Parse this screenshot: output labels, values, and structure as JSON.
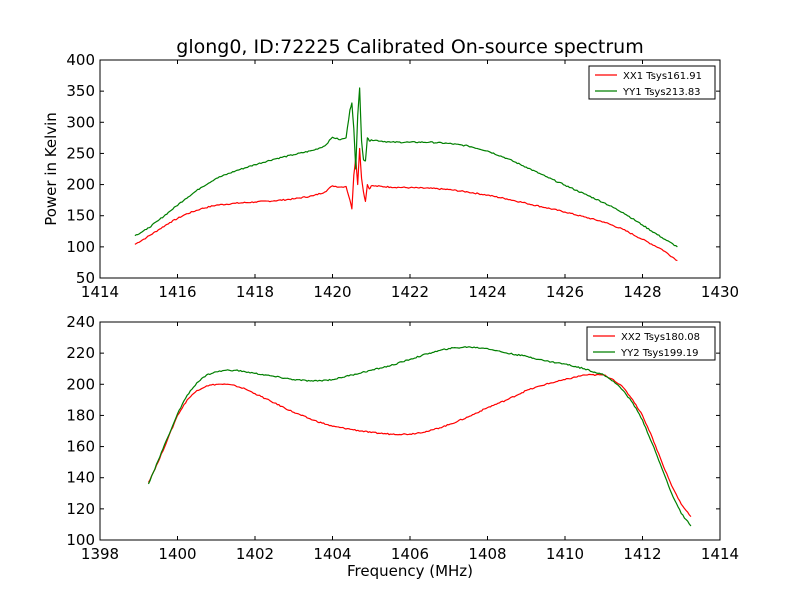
{
  "title": "glong0, ID:72225 Calibrated On-source spectrum",
  "colors": {
    "red": "#ff0000",
    "green": "#007f00"
  },
  "chart_data": [
    {
      "type": "line",
      "ylabel": "Power in Kelvin",
      "xlabel": "",
      "xlim": [
        1414,
        1430
      ],
      "ylim": [
        50,
        400
      ],
      "xticks": [
        1414,
        1416,
        1418,
        1420,
        1422,
        1424,
        1426,
        1428,
        1430
      ],
      "yticks": [
        50,
        100,
        150,
        200,
        250,
        300,
        350,
        400
      ],
      "legend_position": "top-right",
      "series": [
        {
          "name": "XX1 Tsys161.91",
          "color": "#ff0000",
          "points": [
            [
              1414.9,
              104
            ],
            [
              1415.2,
              115
            ],
            [
              1415.5,
              127
            ],
            [
              1415.8,
              139
            ],
            [
              1416.2,
              152
            ],
            [
              1416.6,
              161
            ],
            [
              1417.0,
              167
            ],
            [
              1417.5,
              170
            ],
            [
              1418.0,
              172
            ],
            [
              1418.5,
              174
            ],
            [
              1419.0,
              177
            ],
            [
              1419.5,
              182
            ],
            [
              1419.8,
              188
            ],
            [
              1420.0,
              198
            ],
            [
              1420.2,
              196
            ],
            [
              1420.35,
              197
            ],
            [
              1420.45,
              175
            ],
            [
              1420.5,
              161
            ],
            [
              1420.55,
              215
            ],
            [
              1420.6,
              243
            ],
            [
              1420.65,
              200
            ],
            [
              1420.7,
              258
            ],
            [
              1420.75,
              210
            ],
            [
              1420.8,
              188
            ],
            [
              1420.85,
              173
            ],
            [
              1420.9,
              200
            ],
            [
              1420.95,
              193
            ],
            [
              1421.0,
              198
            ],
            [
              1421.5,
              196
            ],
            [
              1422.0,
              195
            ],
            [
              1422.5,
              194
            ],
            [
              1423.0,
              192
            ],
            [
              1423.5,
              188
            ],
            [
              1424.0,
              183
            ],
            [
              1424.5,
              177
            ],
            [
              1425.0,
              170
            ],
            [
              1425.5,
              163
            ],
            [
              1426.0,
              156
            ],
            [
              1426.5,
              148
            ],
            [
              1427.0,
              140
            ],
            [
              1427.5,
              128
            ],
            [
              1428.0,
              112
            ],
            [
              1428.5,
              96
            ],
            [
              1428.9,
              78
            ]
          ]
        },
        {
          "name": "YY1 Tsys213.83",
          "color": "#007f00",
          "points": [
            [
              1414.9,
              118
            ],
            [
              1415.2,
              128
            ],
            [
              1415.5,
              142
            ],
            [
              1415.8,
              157
            ],
            [
              1416.2,
              177
            ],
            [
              1416.6,
              195
            ],
            [
              1417.0,
              210
            ],
            [
              1417.5,
              222
            ],
            [
              1418.0,
              232
            ],
            [
              1418.5,
              241
            ],
            [
              1419.0,
              248
            ],
            [
              1419.5,
              255
            ],
            [
              1419.8,
              262
            ],
            [
              1420.0,
              276
            ],
            [
              1420.2,
              272
            ],
            [
              1420.35,
              275
            ],
            [
              1420.45,
              320
            ],
            [
              1420.5,
              331
            ],
            [
              1420.55,
              290
            ],
            [
              1420.6,
              225
            ],
            [
              1420.65,
              310
            ],
            [
              1420.7,
              355
            ],
            [
              1420.75,
              270
            ],
            [
              1420.8,
              240
            ],
            [
              1420.85,
              238
            ],
            [
              1420.9,
              275
            ],
            [
              1420.95,
              270
            ],
            [
              1421.0,
              272
            ],
            [
              1421.5,
              268
            ],
            [
              1422.0,
              268
            ],
            [
              1422.5,
              268
            ],
            [
              1423.0,
              266
            ],
            [
              1423.5,
              262
            ],
            [
              1424.0,
              254
            ],
            [
              1424.5,
              242
            ],
            [
              1425.0,
              228
            ],
            [
              1425.5,
              213
            ],
            [
              1426.0,
              199
            ],
            [
              1426.5,
              185
            ],
            [
              1427.0,
              171
            ],
            [
              1427.5,
              155
            ],
            [
              1428.0,
              135
            ],
            [
              1428.5,
              115
            ],
            [
              1428.9,
              100
            ]
          ]
        }
      ]
    },
    {
      "type": "line",
      "ylabel": "",
      "xlabel": "Frequency (MHz)",
      "xlim": [
        1398,
        1414
      ],
      "ylim": [
        100,
        240
      ],
      "xticks": [
        1398,
        1400,
        1402,
        1404,
        1406,
        1408,
        1410,
        1412,
        1414
      ],
      "yticks": [
        100,
        120,
        140,
        160,
        180,
        200,
        220,
        240
      ],
      "legend_position": "top-right",
      "series": [
        {
          "name": "XX2 Tsys180.08",
          "color": "#ff0000",
          "points": [
            [
              1399.25,
              137
            ],
            [
              1399.5,
              150
            ],
            [
              1399.75,
              165
            ],
            [
              1400.0,
              180
            ],
            [
              1400.25,
              190
            ],
            [
              1400.5,
              196
            ],
            [
              1400.75,
              199
            ],
            [
              1401.0,
              200
            ],
            [
              1401.25,
              200
            ],
            [
              1401.5,
              199
            ],
            [
              1401.75,
              197
            ],
            [
              1402.0,
              194
            ],
            [
              1402.5,
              188
            ],
            [
              1403.0,
              182
            ],
            [
              1403.5,
              177
            ],
            [
              1404.0,
              173
            ],
            [
              1404.5,
              171
            ],
            [
              1405.0,
              169
            ],
            [
              1405.5,
              168
            ],
            [
              1406.0,
              168
            ],
            [
              1406.5,
              170
            ],
            [
              1407.0,
              174
            ],
            [
              1407.5,
              179
            ],
            [
              1408.0,
              185
            ],
            [
              1408.5,
              190
            ],
            [
              1409.0,
              196
            ],
            [
              1409.5,
              200
            ],
            [
              1410.0,
              203
            ],
            [
              1410.5,
              206
            ],
            [
              1411.0,
              206
            ],
            [
              1411.25,
              203
            ],
            [
              1411.5,
              198
            ],
            [
              1411.75,
              190
            ],
            [
              1412.0,
              180
            ],
            [
              1412.25,
              166
            ],
            [
              1412.5,
              150
            ],
            [
              1412.75,
              135
            ],
            [
              1413.0,
              123
            ],
            [
              1413.25,
              115
            ]
          ]
        },
        {
          "name": "YY2 Tsys199.19",
          "color": "#007f00",
          "points": [
            [
              1399.25,
              136
            ],
            [
              1399.5,
              151
            ],
            [
              1399.75,
              166
            ],
            [
              1400.0,
              181
            ],
            [
              1400.25,
              193
            ],
            [
              1400.5,
              201
            ],
            [
              1400.75,
              206
            ],
            [
              1401.0,
              208
            ],
            [
              1401.25,
              209
            ],
            [
              1401.5,
              209
            ],
            [
              1401.75,
              208
            ],
            [
              1402.0,
              207
            ],
            [
              1402.5,
              205
            ],
            [
              1403.0,
              203
            ],
            [
              1403.5,
              202
            ],
            [
              1404.0,
              203
            ],
            [
              1404.5,
              206
            ],
            [
              1405.0,
              209
            ],
            [
              1405.5,
              212
            ],
            [
              1406.0,
              216
            ],
            [
              1406.5,
              220
            ],
            [
              1407.0,
              223
            ],
            [
              1407.5,
              224
            ],
            [
              1408.0,
              223
            ],
            [
              1408.5,
              220
            ],
            [
              1409.0,
              218
            ],
            [
              1409.5,
              215
            ],
            [
              1410.0,
              213
            ],
            [
              1410.5,
              210
            ],
            [
              1411.0,
              206
            ],
            [
              1411.25,
              202
            ],
            [
              1411.5,
              196
            ],
            [
              1411.75,
              188
            ],
            [
              1412.0,
              177
            ],
            [
              1412.25,
              162
            ],
            [
              1412.5,
              146
            ],
            [
              1412.75,
              130
            ],
            [
              1413.0,
              117
            ],
            [
              1413.25,
              109
            ]
          ]
        }
      ]
    }
  ]
}
